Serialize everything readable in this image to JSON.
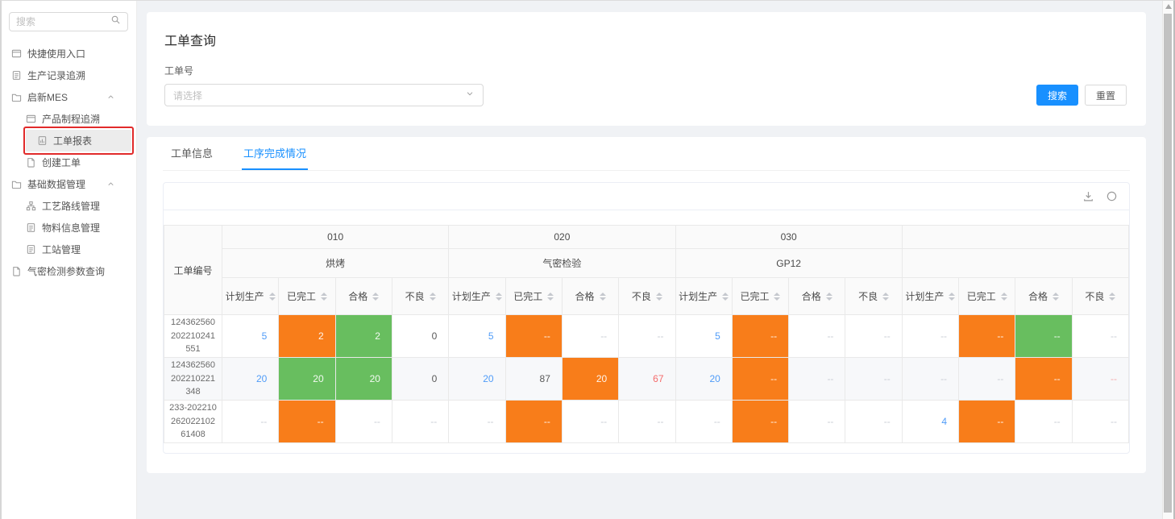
{
  "sidebar": {
    "search": {
      "placeholder": "搜索"
    },
    "menu": [
      {
        "label": "快捷使用入口",
        "icon": "panel-icon",
        "level": 0
      },
      {
        "label": "生产记录追溯",
        "icon": "record-icon",
        "level": 0
      },
      {
        "label": "启新MES",
        "icon": "folder-icon",
        "level": 0,
        "expanded": true
      },
      {
        "label": "产品制程追溯",
        "icon": "panel-icon",
        "level": 1
      },
      {
        "label": "工单报表",
        "icon": "report-icon",
        "level": 1,
        "selected": true,
        "annotated": true
      },
      {
        "label": "创建工单",
        "icon": "doc-icon",
        "level": 1
      },
      {
        "label": "基础数据管理",
        "icon": "folder-icon",
        "level": 0,
        "expanded": true
      },
      {
        "label": "工艺路线管理",
        "icon": "route-icon",
        "level": 1
      },
      {
        "label": "物料信息管理",
        "icon": "record-icon",
        "level": 1
      },
      {
        "label": "工站管理",
        "icon": "record-icon",
        "level": 1
      },
      {
        "label": "气密检测参数查询",
        "icon": "doc-icon",
        "level": 0
      }
    ]
  },
  "query": {
    "title": "工单查询",
    "field_label": "工单号",
    "select_placeholder": "请选择",
    "search_button": "搜索",
    "reset_button": "重置"
  },
  "tabs": [
    {
      "label": "工单信息",
      "active": false
    },
    {
      "label": "工序完成情况",
      "active": true
    }
  ],
  "table_toolbar": {
    "icons": [
      "download-icon",
      "refresh-icon"
    ]
  },
  "process_table": {
    "order_col_header": "工单编号",
    "groups": [
      {
        "code": "010",
        "name": "烘烤"
      },
      {
        "code": "020",
        "name": "气密检验"
      },
      {
        "code": "030",
        "name": "GP12"
      },
      {
        "code": "",
        "name": ""
      }
    ],
    "metric_headers": [
      "计划生产",
      "已完工",
      "合格",
      "不良"
    ],
    "rows": [
      {
        "order_no": "124362560202210241551",
        "cells": [
          {
            "text": "5",
            "style": "link"
          },
          {
            "text": "2",
            "style": "orange"
          },
          {
            "text": "2",
            "style": "green"
          },
          {
            "text": "0",
            "style": "plain"
          },
          {
            "text": "5",
            "style": "link"
          },
          {
            "text": "--",
            "style": "orange"
          },
          {
            "text": "--",
            "style": "muted"
          },
          {
            "text": "--",
            "style": "muted"
          },
          {
            "text": "5",
            "style": "link"
          },
          {
            "text": "--",
            "style": "orange"
          },
          {
            "text": "--",
            "style": "muted"
          },
          {
            "text": "--",
            "style": "muted"
          },
          {
            "text": "--",
            "style": "muted"
          },
          {
            "text": "--",
            "style": "orange"
          },
          {
            "text": "--",
            "style": "green"
          },
          {
            "text": "--",
            "style": "muted"
          }
        ]
      },
      {
        "order_no": "124362560202210221348",
        "cells": [
          {
            "text": "20",
            "style": "link"
          },
          {
            "text": "20",
            "style": "green"
          },
          {
            "text": "20",
            "style": "green"
          },
          {
            "text": "0",
            "style": "plain"
          },
          {
            "text": "20",
            "style": "link"
          },
          {
            "text": "87",
            "style": "plain"
          },
          {
            "text": "20",
            "style": "orange"
          },
          {
            "text": "67",
            "style": "red"
          },
          {
            "text": "20",
            "style": "link"
          },
          {
            "text": "--",
            "style": "orange"
          },
          {
            "text": "--",
            "style": "muted"
          },
          {
            "text": "--",
            "style": "muted"
          },
          {
            "text": "--",
            "style": "muted"
          },
          {
            "text": "--",
            "style": "muted"
          },
          {
            "text": "--",
            "style": "orange"
          },
          {
            "text": "--",
            "style": "redmuted"
          }
        ]
      },
      {
        "order_no": "233-20221026202210261408",
        "cells": [
          {
            "text": "--",
            "style": "muted"
          },
          {
            "text": "--",
            "style": "orange"
          },
          {
            "text": "--",
            "style": "muted"
          },
          {
            "text": "--",
            "style": "muted"
          },
          {
            "text": "--",
            "style": "muted"
          },
          {
            "text": "--",
            "style": "orange"
          },
          {
            "text": "--",
            "style": "muted"
          },
          {
            "text": "--",
            "style": "muted"
          },
          {
            "text": "--",
            "style": "muted"
          },
          {
            "text": "--",
            "style": "orange"
          },
          {
            "text": "--",
            "style": "muted"
          },
          {
            "text": "--",
            "style": "muted"
          },
          {
            "text": "4",
            "style": "link"
          },
          {
            "text": "--",
            "style": "orange"
          },
          {
            "text": "--",
            "style": "muted"
          },
          {
            "text": "--",
            "style": "muted"
          }
        ]
      }
    ]
  },
  "colors": {
    "accent_blue": "#1890ff",
    "link_blue": "#509cf8",
    "cell_orange": "#f87d1a",
    "cell_green": "#68be5f",
    "danger_red": "#f56c6c",
    "annotation_red": "#e12a2a"
  }
}
